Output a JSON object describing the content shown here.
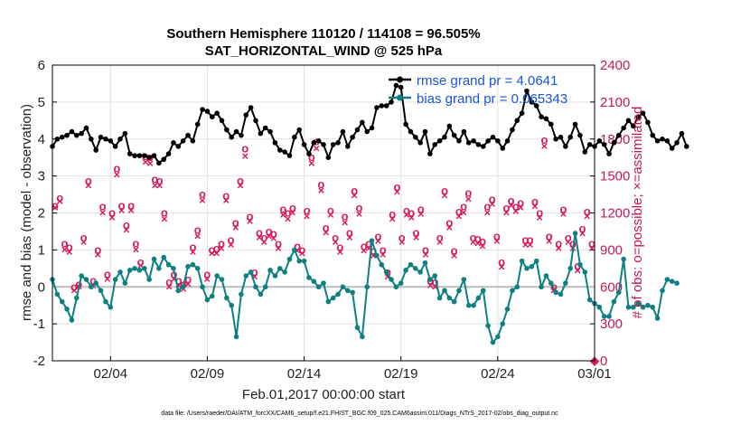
{
  "chart_data": {
    "type": "line",
    "title_line1": "Southern Hemisphere 110120 / 114108 = 96.505%",
    "title_line2": "SAT_HORIZONTAL_WIND @ 525 hPa",
    "xlabel": "Feb.01,2017 00:00:00 start",
    "ylabel": "rmse and bias (model - observation)",
    "ylabel_right": "# of obs: o=possible; ×=assimilated",
    "footnote": "data file: /Users/raeder/DAI/ATM_forcXX/CAM6_setup/f.e21.FHIST_BGC.f09_025.CAM6assim.011/Diags_NTrS_2017-02/obs_diag_output.nc",
    "xlim": [
      1.0,
      29.0
    ],
    "ylim": [
      -2,
      6
    ],
    "ylim_right": [
      0,
      2400
    ],
    "x_ticks": [
      4,
      9,
      14,
      19,
      24,
      29
    ],
    "x_tick_labels": [
      "02/04",
      "02/09",
      "02/14",
      "02/19",
      "02/24",
      "03/01"
    ],
    "y_ticks": [
      -2,
      -1,
      0,
      1,
      2,
      3,
      4,
      5,
      6
    ],
    "y_tick_labels": [
      "-2",
      "-1",
      "0",
      "1",
      "2",
      "3",
      "4",
      "5",
      "6"
    ],
    "y_ticks_right": [
      0,
      300,
      600,
      900,
      1200,
      1500,
      1800,
      2100,
      2400
    ],
    "y_tick_labels_right": [
      "0",
      "300",
      "600",
      "900",
      "1200",
      "1500",
      "1800",
      "2100",
      "2400"
    ],
    "grid": true,
    "x_start": 1.0,
    "x_step": 0.25,
    "series": [
      {
        "name": "rmse",
        "legend": "rmse grand pr = 4.0641",
        "color": "#000000",
        "values": [
          3.8,
          4.0,
          4.05,
          4.1,
          4.2,
          4.1,
          4.15,
          4.3,
          4.0,
          3.7,
          4.05,
          4.0,
          3.95,
          3.8,
          4.0,
          4.15,
          3.6,
          3.55,
          3.55,
          3.55,
          3.5,
          3.55,
          3.35,
          3.45,
          3.6,
          3.9,
          3.8,
          3.95,
          4.1,
          3.95,
          4.4,
          4.8,
          4.75,
          4.6,
          4.7,
          4.5,
          4.25,
          4.05,
          4.2,
          4.1,
          4.65,
          4.85,
          4.5,
          4.15,
          4.3,
          4.2,
          3.9,
          3.7,
          3.65,
          3.55,
          4.05,
          4.25,
          3.85,
          3.6,
          3.9,
          3.95,
          3.85,
          3.5,
          3.85,
          3.9,
          4.2,
          3.8,
          4.05,
          4.25,
          4.45,
          4.2,
          4.3,
          4.85,
          4.9,
          4.9,
          5.0,
          5.45,
          5.4,
          4.4,
          4.2,
          4.05,
          3.9,
          4.2,
          3.6,
          3.85,
          3.95,
          4.05,
          4.35,
          4.1,
          3.95,
          4.2,
          3.9,
          3.95,
          3.85,
          3.8,
          3.95,
          4.05,
          3.95,
          3.75,
          3.95,
          4.25,
          4.5,
          4.7,
          5.3,
          5.0,
          4.9,
          4.6,
          4.55,
          4.4,
          4.0,
          4.05,
          3.8,
          4.05,
          4.4,
          4.1,
          3.65,
          3.85,
          3.8,
          3.95,
          3.85,
          3.6,
          3.9,
          4.1,
          4.3,
          4.5,
          4.35,
          4.6,
          4.7,
          4.45,
          4.1,
          3.95,
          4.0,
          3.95,
          3.75,
          3.9,
          4.15,
          3.8
        ]
      },
      {
        "name": "bias",
        "legend": "bias grand pr = 0.065343",
        "color": "#0e8080",
        "values": [
          0.2,
          -0.2,
          -0.4,
          -0.6,
          -0.9,
          -0.3,
          0.3,
          0.2,
          0.0,
          0.1,
          -0.1,
          -0.4,
          -0.55,
          0.2,
          0.4,
          0.1,
          0.45,
          0.5,
          0.45,
          0.5,
          0.2,
          0.75,
          0.5,
          0.8,
          0.6,
          0.5,
          -0.1,
          0.0,
          0.55,
          0.6,
          0.5,
          0.0,
          -0.35,
          -0.25,
          0.3,
          0.2,
          -0.3,
          -0.5,
          -1.35,
          -0.2,
          0.3,
          0.4,
          0.0,
          -0.2,
          0.0,
          0.45,
          0.3,
          0.5,
          0.4,
          0.75,
          1.0,
          0.7,
          0.7,
          0.25,
          0.15,
          0.0,
          0.1,
          -0.4,
          -0.3,
          -0.2,
          0.0,
          -0.1,
          -0.15,
          -1.1,
          -1.35,
          0.0,
          1.25,
          0.85,
          0.6,
          0.4,
          0.2,
          0.0,
          0.1,
          0.45,
          0.6,
          0.5,
          0.4,
          0.65,
          0.2,
          0.3,
          -0.3,
          -0.1,
          -0.3,
          -0.4,
          -0.1,
          0.2,
          -0.5,
          -0.5,
          -0.3,
          -0.1,
          -1.05,
          -1.5,
          -1.35,
          -1.0,
          -0.6,
          -0.1,
          0.0,
          0.7,
          0.5,
          0.55,
          0.7,
          0.0,
          0.3,
          0.1,
          -0.15,
          -0.2,
          0.1,
          0.5,
          1.45,
          0.6,
          0.4,
          -0.35,
          -0.45,
          -0.55,
          -0.8,
          -0.8,
          -0.4,
          -0.15,
          0.75,
          -0.55,
          -0.55,
          -0.45,
          -0.55,
          -0.5,
          -0.55,
          -0.85,
          -0.1,
          0.2,
          0.15,
          0.1
        ]
      },
      {
        "name": "obs_possible",
        "axis": "right",
        "marker": "o",
        "color": "#d81b60",
        "values": [
          1260,
          1320,
          950,
          920,
          600,
          620,
          1000,
          1460,
          650,
          900,
          1250,
          700,
          1200,
          1560,
          1260,
          1100,
          1260,
          950,
          800,
          1660,
          1650,
          1470,
          1460,
          1200,
          640,
          700,
          650,
          620,
          660,
          920,
          1060,
          1350,
          700,
          900,
          910,
          950,
          1340,
          980,
          1120,
          1460,
          1720,
          1170,
          720,
          1040,
          1000,
          1050,
          1030,
          950,
          1230,
          1200,
          1240,
          930,
          900,
          1220,
          1650,
          1780,
          1430,
          1080,
          1220,
          1000,
          920,
          1170,
          1040,
          1380,
          1240,
          930,
          950,
          890,
          1010,
          900,
          720,
          1190,
          1410,
          1000,
          1220,
          1200,
          1040,
          1230,
          900,
          650,
          640,
          1000,
          1380,
          1120,
          890,
          1210,
          1250,
          1360,
          1000,
          990,
          970,
          1250,
          1310,
          1010,
          800,
          1240,
          1300,
          1250,
          1280,
          980,
          980,
          1290,
          1200,
          1790,
          1010,
          600,
          950,
          1230,
          1000,
          950,
          770,
          1070,
          1210,
          950
        ]
      },
      {
        "name": "obs_assimilated",
        "axis": "right",
        "marker": "x",
        "color": "#d81b60",
        "values": [
          1240,
          1290,
          900,
          880,
          570,
          600,
          960,
          1420,
          610,
          860,
          1200,
          660,
          1160,
          1510,
          1220,
          1060,
          1220,
          900,
          770,
          1610,
          1600,
          1420,
          1420,
          1150,
          600,
          660,
          610,
          580,
          620,
          880,
          1010,
          1300,
          660,
          870,
          870,
          910,
          1300,
          940,
          1080,
          1420,
          1660,
          1130,
          680,
          1000,
          960,
          1010,
          990,
          910,
          1180,
          1150,
          1200,
          890,
          870,
          1170,
          1600,
          1720,
          1380,
          1040,
          1180,
          960,
          880,
          1120,
          1000,
          1340,
          1190,
          890,
          910,
          850,
          970,
          860,
          680,
          1150,
          1370,
          960,
          1180,
          1160,
          1000,
          1190,
          860,
          610,
          600,
          960,
          1340,
          1080,
          850,
          1170,
          1200,
          1310,
          960,
          950,
          930,
          1200,
          1270,
          970,
          760,
          1200,
          1260,
          1210,
          1240,
          940,
          940,
          1250,
          1160,
          1740,
          970,
          570,
          910,
          1190,
          960,
          910,
          730,
          1030,
          1170,
          910
        ]
      }
    ]
  }
}
